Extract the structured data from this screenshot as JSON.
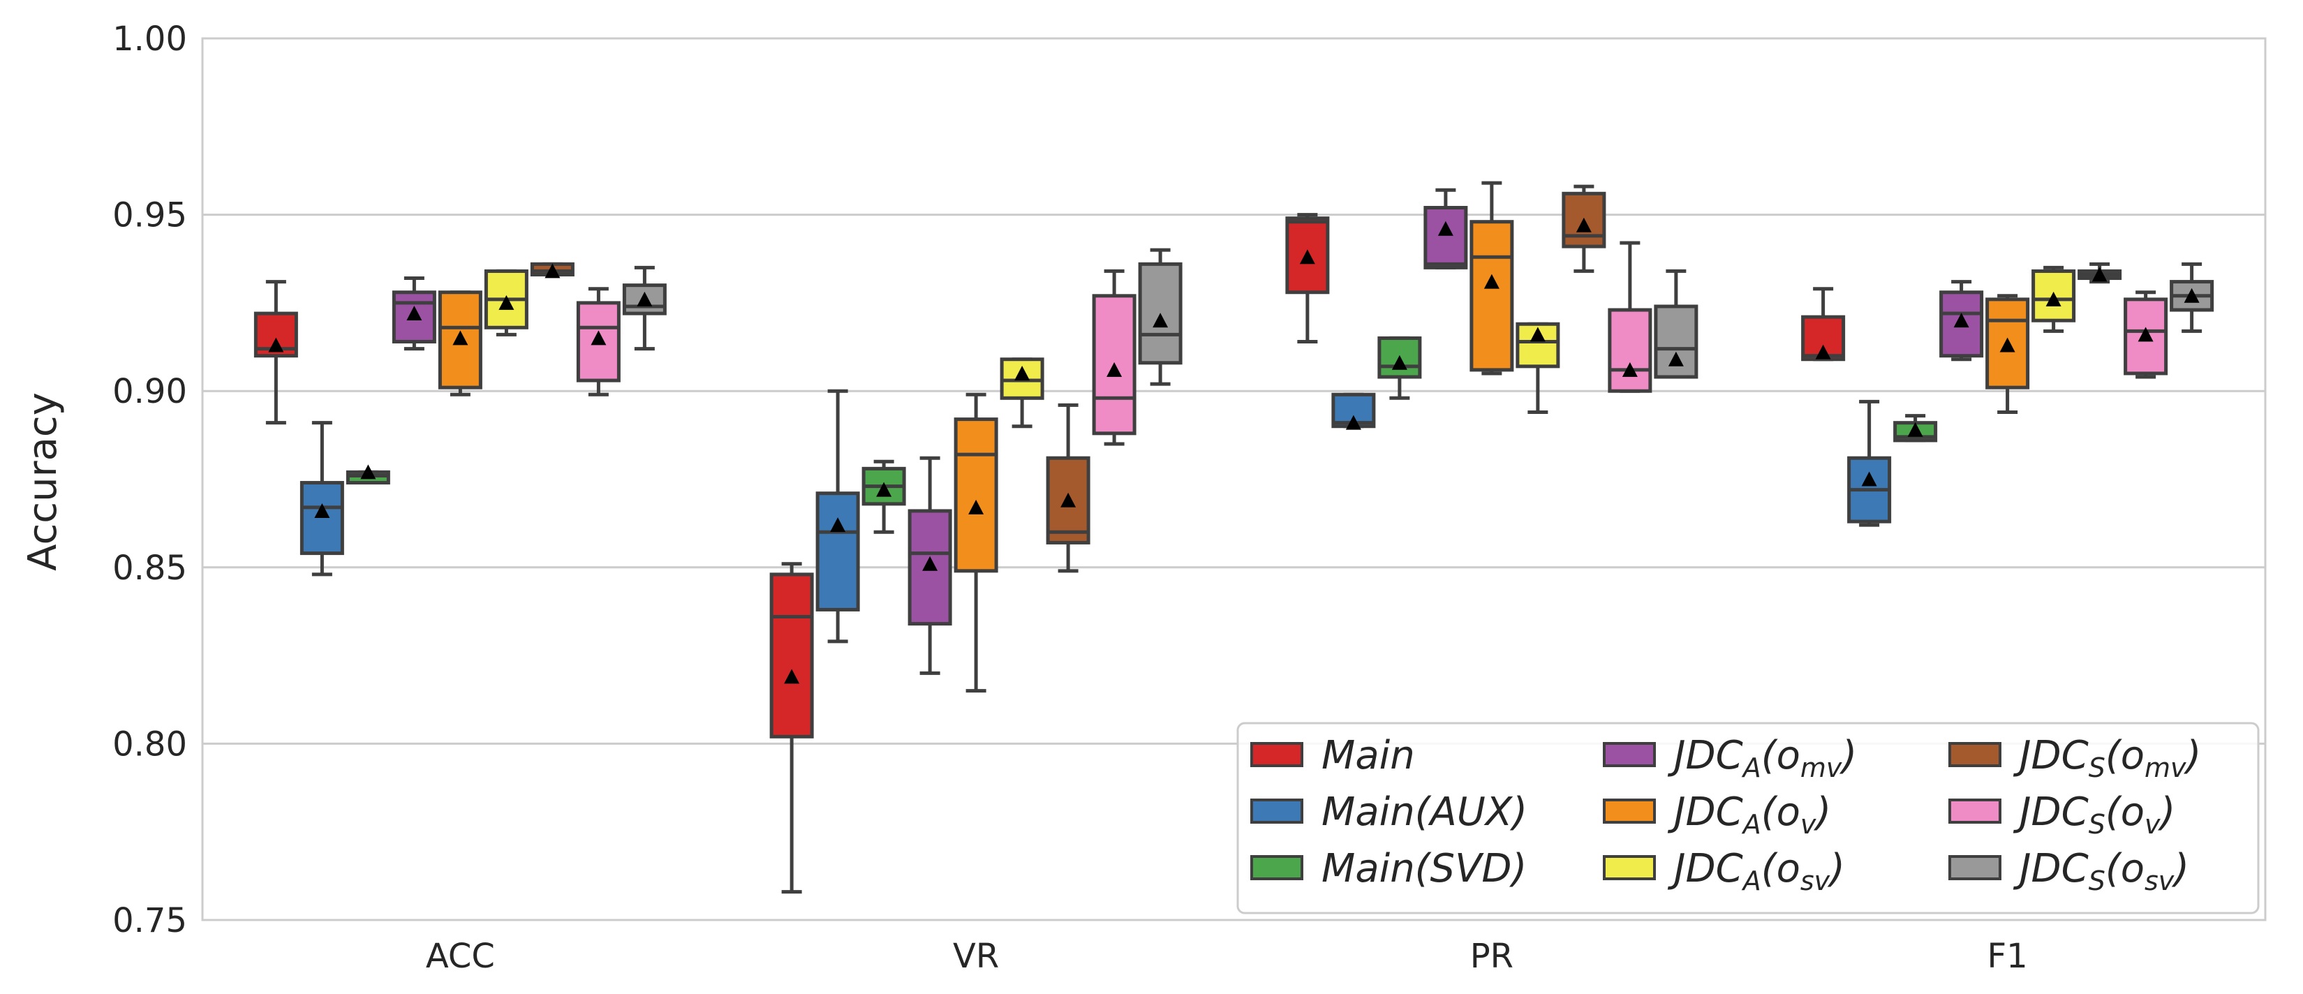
{
  "chart_data": {
    "type": "box",
    "title": "",
    "xlabel": "",
    "ylabel": "Accuracy",
    "ylim": [
      0.75,
      1.0
    ],
    "yticks": [
      "0.75",
      "0.80",
      "0.85",
      "0.90",
      "0.95",
      "1.00"
    ],
    "grid": true,
    "legend_position": "lower-right",
    "categories": [
      "ACC",
      "VR",
      "PR",
      "F1"
    ],
    "series": [
      {
        "name": "Main",
        "main": "Main",
        "sub": "",
        "color": "#d62728",
        "boxes": [
          {
            "whisker_low": 0.891,
            "q1": 0.91,
            "median": 0.912,
            "q3": 0.922,
            "whisker_high": 0.931,
            "mean": 0.913
          },
          {
            "whisker_low": 0.758,
            "q1": 0.802,
            "median": 0.836,
            "q3": 0.848,
            "whisker_high": 0.851,
            "mean": 0.819
          },
          {
            "whisker_low": 0.914,
            "q1": 0.928,
            "median": 0.948,
            "q3": 0.949,
            "whisker_high": 0.95,
            "mean": 0.938
          },
          {
            "whisker_low": 0.909,
            "q1": 0.909,
            "median": 0.91,
            "q3": 0.921,
            "whisker_high": 0.929,
            "mean": 0.911
          }
        ]
      },
      {
        "name": "Main(AUX)",
        "main": "Main(AUX)",
        "sub": "",
        "color": "#3d7ab5",
        "boxes": [
          {
            "whisker_low": 0.848,
            "q1": 0.854,
            "median": 0.867,
            "q3": 0.874,
            "whisker_high": 0.891,
            "mean": 0.866
          },
          {
            "whisker_low": 0.829,
            "q1": 0.838,
            "median": 0.86,
            "q3": 0.871,
            "whisker_high": 0.9,
            "mean": 0.862
          },
          {
            "whisker_low": 0.89,
            "q1": 0.89,
            "median": 0.891,
            "q3": 0.899,
            "whisker_high": 0.899,
            "mean": 0.891
          },
          {
            "whisker_low": 0.862,
            "q1": 0.863,
            "median": 0.872,
            "q3": 0.881,
            "whisker_high": 0.897,
            "mean": 0.875
          }
        ]
      },
      {
        "name": "Main(SVD)",
        "main": "Main(SVD)",
        "sub": "",
        "color": "#4ca64c",
        "boxes": [
          {
            "whisker_low": 0.874,
            "q1": 0.874,
            "median": 0.876,
            "q3": 0.877,
            "whisker_high": 0.877,
            "mean": 0.877
          },
          {
            "whisker_low": 0.86,
            "q1": 0.868,
            "median": 0.873,
            "q3": 0.878,
            "whisker_high": 0.88,
            "mean": 0.872
          },
          {
            "whisker_low": 0.898,
            "q1": 0.904,
            "median": 0.907,
            "q3": 0.915,
            "whisker_high": 0.915,
            "mean": 0.908
          },
          {
            "whisker_low": 0.886,
            "q1": 0.886,
            "median": 0.887,
            "q3": 0.891,
            "whisker_high": 0.893,
            "mean": 0.889
          }
        ]
      },
      {
        "name": "JDC_A(o_mv)",
        "main": "JDC",
        "sub": "A",
        "arg": "o",
        "argsub": "mv",
        "color": "#9b52a3",
        "boxes": [
          {
            "whisker_low": 0.912,
            "q1": 0.914,
            "median": 0.925,
            "q3": 0.928,
            "whisker_high": 0.932,
            "mean": 0.922
          },
          {
            "whisker_low": 0.82,
            "q1": 0.834,
            "median": 0.854,
            "q3": 0.866,
            "whisker_high": 0.881,
            "mean": 0.851
          },
          {
            "whisker_low": 0.935,
            "q1": 0.935,
            "median": 0.936,
            "q3": 0.952,
            "whisker_high": 0.957,
            "mean": 0.946
          },
          {
            "whisker_low": 0.909,
            "q1": 0.91,
            "median": 0.922,
            "q3": 0.928,
            "whisker_high": 0.931,
            "mean": 0.92
          }
        ]
      },
      {
        "name": "JDC_A(o_v)",
        "main": "JDC",
        "sub": "A",
        "arg": "o",
        "argsub": "v",
        "color": "#f28e1c",
        "boxes": [
          {
            "whisker_low": 0.899,
            "q1": 0.901,
            "median": 0.918,
            "q3": 0.928,
            "whisker_high": 0.928,
            "mean": 0.915
          },
          {
            "whisker_low": 0.815,
            "q1": 0.849,
            "median": 0.882,
            "q3": 0.892,
            "whisker_high": 0.899,
            "mean": 0.867
          },
          {
            "whisker_low": 0.905,
            "q1": 0.906,
            "median": 0.938,
            "q3": 0.948,
            "whisker_high": 0.959,
            "mean": 0.931
          },
          {
            "whisker_low": 0.894,
            "q1": 0.901,
            "median": 0.92,
            "q3": 0.926,
            "whisker_high": 0.927,
            "mean": 0.913
          }
        ]
      },
      {
        "name": "JDC_A(o_sv)",
        "main": "JDC",
        "sub": "A",
        "arg": "o",
        "argsub": "sv",
        "color": "#f0ec4c",
        "boxes": [
          {
            "whisker_low": 0.916,
            "q1": 0.918,
            "median": 0.926,
            "q3": 0.934,
            "whisker_high": 0.934,
            "mean": 0.925
          },
          {
            "whisker_low": 0.89,
            "q1": 0.898,
            "median": 0.903,
            "q3": 0.909,
            "whisker_high": 0.909,
            "mean": 0.905
          },
          {
            "whisker_low": 0.894,
            "q1": 0.907,
            "median": 0.914,
            "q3": 0.919,
            "whisker_high": 0.919,
            "mean": 0.916
          },
          {
            "whisker_low": 0.917,
            "q1": 0.92,
            "median": 0.926,
            "q3": 0.934,
            "whisker_high": 0.935,
            "mean": 0.926
          }
        ]
      },
      {
        "name": "JDC_S(o_mv)",
        "main": "JDC",
        "sub": "S",
        "arg": "o",
        "argsub": "mv",
        "color": "#a55a2e",
        "boxes": [
          {
            "whisker_low": 0.933,
            "q1": 0.933,
            "median": 0.934,
            "q3": 0.936,
            "whisker_high": 0.936,
            "mean": 0.934
          },
          {
            "whisker_low": 0.849,
            "q1": 0.857,
            "median": 0.86,
            "q3": 0.881,
            "whisker_high": 0.896,
            "mean": 0.869
          },
          {
            "whisker_low": 0.934,
            "q1": 0.941,
            "median": 0.944,
            "q3": 0.956,
            "whisker_high": 0.958,
            "mean": 0.947
          },
          {
            "whisker_low": 0.931,
            "q1": 0.932,
            "median": 0.933,
            "q3": 0.934,
            "whisker_high": 0.936,
            "mean": 0.933
          }
        ]
      },
      {
        "name": "JDC_S(o_v)",
        "main": "JDC",
        "sub": "S",
        "arg": "o",
        "argsub": "v",
        "color": "#ef8cc6",
        "boxes": [
          {
            "whisker_low": 0.899,
            "q1": 0.903,
            "median": 0.918,
            "q3": 0.925,
            "whisker_high": 0.929,
            "mean": 0.915
          },
          {
            "whisker_low": 0.885,
            "q1": 0.888,
            "median": 0.898,
            "q3": 0.927,
            "whisker_high": 0.934,
            "mean": 0.906
          },
          {
            "whisker_low": 0.9,
            "q1": 0.9,
            "median": 0.906,
            "q3": 0.923,
            "whisker_high": 0.942,
            "mean": 0.906
          },
          {
            "whisker_low": 0.904,
            "q1": 0.905,
            "median": 0.917,
            "q3": 0.926,
            "whisker_high": 0.928,
            "mean": 0.916
          }
        ]
      },
      {
        "name": "JDC_S(o_sv)",
        "main": "JDC",
        "sub": "S",
        "arg": "o",
        "argsub": "sv",
        "color": "#999999",
        "boxes": [
          {
            "whisker_low": 0.912,
            "q1": 0.922,
            "median": 0.924,
            "q3": 0.93,
            "whisker_high": 0.935,
            "mean": 0.926
          },
          {
            "whisker_low": 0.902,
            "q1": 0.908,
            "median": 0.916,
            "q3": 0.936,
            "whisker_high": 0.94,
            "mean": 0.92
          },
          {
            "whisker_low": 0.904,
            "q1": 0.904,
            "median": 0.912,
            "q3": 0.924,
            "whisker_high": 0.934,
            "mean": 0.909
          },
          {
            "whisker_low": 0.917,
            "q1": 0.923,
            "median": 0.927,
            "q3": 0.931,
            "whisker_high": 0.936,
            "mean": 0.927
          }
        ]
      }
    ]
  }
}
